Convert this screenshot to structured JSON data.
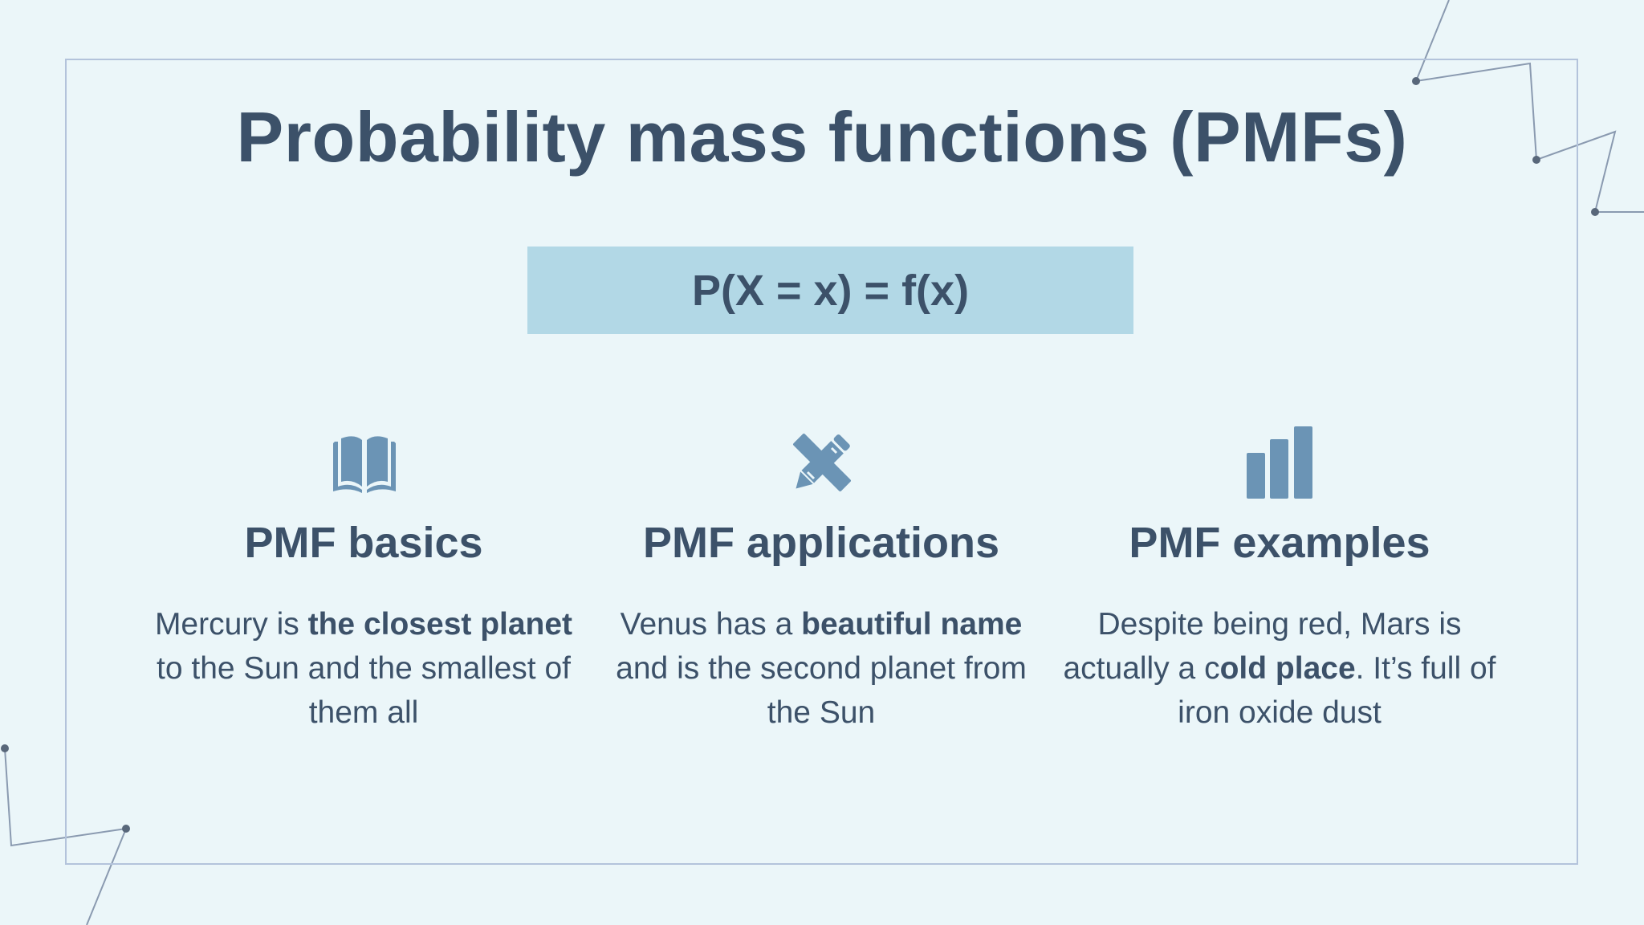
{
  "title": "Probability mass functions (PMFs)",
  "formula": "P(X = x) = f(x)",
  "columns": [
    {
      "icon": "book-icon",
      "heading": "PMF basics",
      "text_parts": [
        {
          "t": "Mercury is ",
          "b": false
        },
        {
          "t": "the closest planet",
          "b": true
        },
        {
          "t": " to the Sun and the smallest of them all",
          "b": false
        }
      ]
    },
    {
      "icon": "pencil-ruler-icon",
      "heading": "PMF applications",
      "text_parts": [
        {
          "t": "Venus has a ",
          "b": false
        },
        {
          "t": "beautiful name",
          "b": true
        },
        {
          "t": " and is the second planet from the Sun",
          "b": false
        }
      ]
    },
    {
      "icon": "bar-chart-icon",
      "heading": "PMF examples",
      "text_parts": [
        {
          "t": "Despite being red, Mars is actually a c",
          "b": false
        },
        {
          "t": "old place",
          "b": true
        },
        {
          "t": ". It’s full of iron oxide dust",
          "b": false
        }
      ]
    }
  ],
  "colors": {
    "background": "#ebf6f9",
    "text": "#3c5169",
    "icon": "#6b94b5",
    "formula_box": "#b2d8e6",
    "frame": "#b3c3db",
    "decor_lines": "#8a9ab0"
  }
}
